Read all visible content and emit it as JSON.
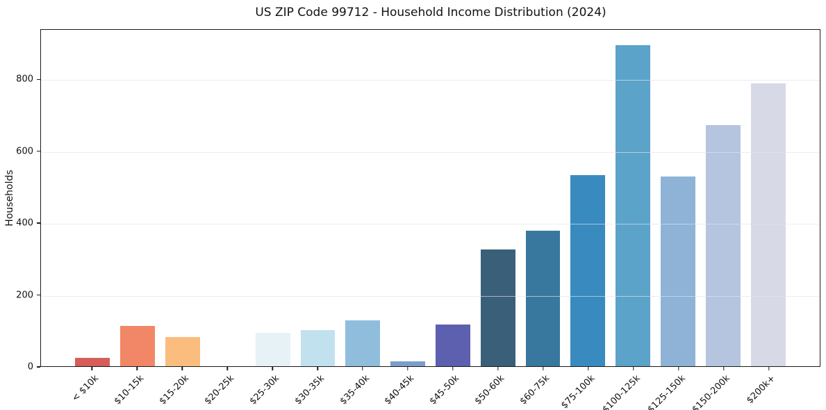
{
  "chart_data": {
    "type": "bar",
    "title": "US ZIP Code 99712 - Household Income Distribution (2024)",
    "xlabel": "",
    "ylabel": "Households",
    "categories": [
      "< $10k",
      "$10-15k",
      "$15-20k",
      "$20-25k",
      "$25-30k",
      "$30-35k",
      "$35-40k",
      "$40-45k",
      "$45-50k",
      "$50-60k",
      "$60-75k",
      "$75-100k",
      "$100-125k",
      "$125-150k",
      "$150-200k",
      "$200k+"
    ],
    "values": [
      24,
      113,
      81,
      0,
      92,
      101,
      127,
      13,
      116,
      325,
      378,
      531,
      893,
      528,
      672,
      787
    ],
    "bar_colors": [
      "#d65d58",
      "#f28768",
      "#fabd7e",
      "#c8c8c8",
      "#e7f2f6",
      "#c2e1ee",
      "#90bddc",
      "#7b9dca",
      "#5c60ae",
      "#3a5f79",
      "#38789f",
      "#398bbf",
      "#5ba3c9",
      "#8eb3d7",
      "#b5c5df",
      "#d7d9e7"
    ],
    "ylim": [
      0,
      940
    ],
    "yticks": [
      0,
      200,
      400,
      600,
      800
    ],
    "grid": "horizontal-only",
    "legend": "none",
    "spines": "full-box"
  }
}
